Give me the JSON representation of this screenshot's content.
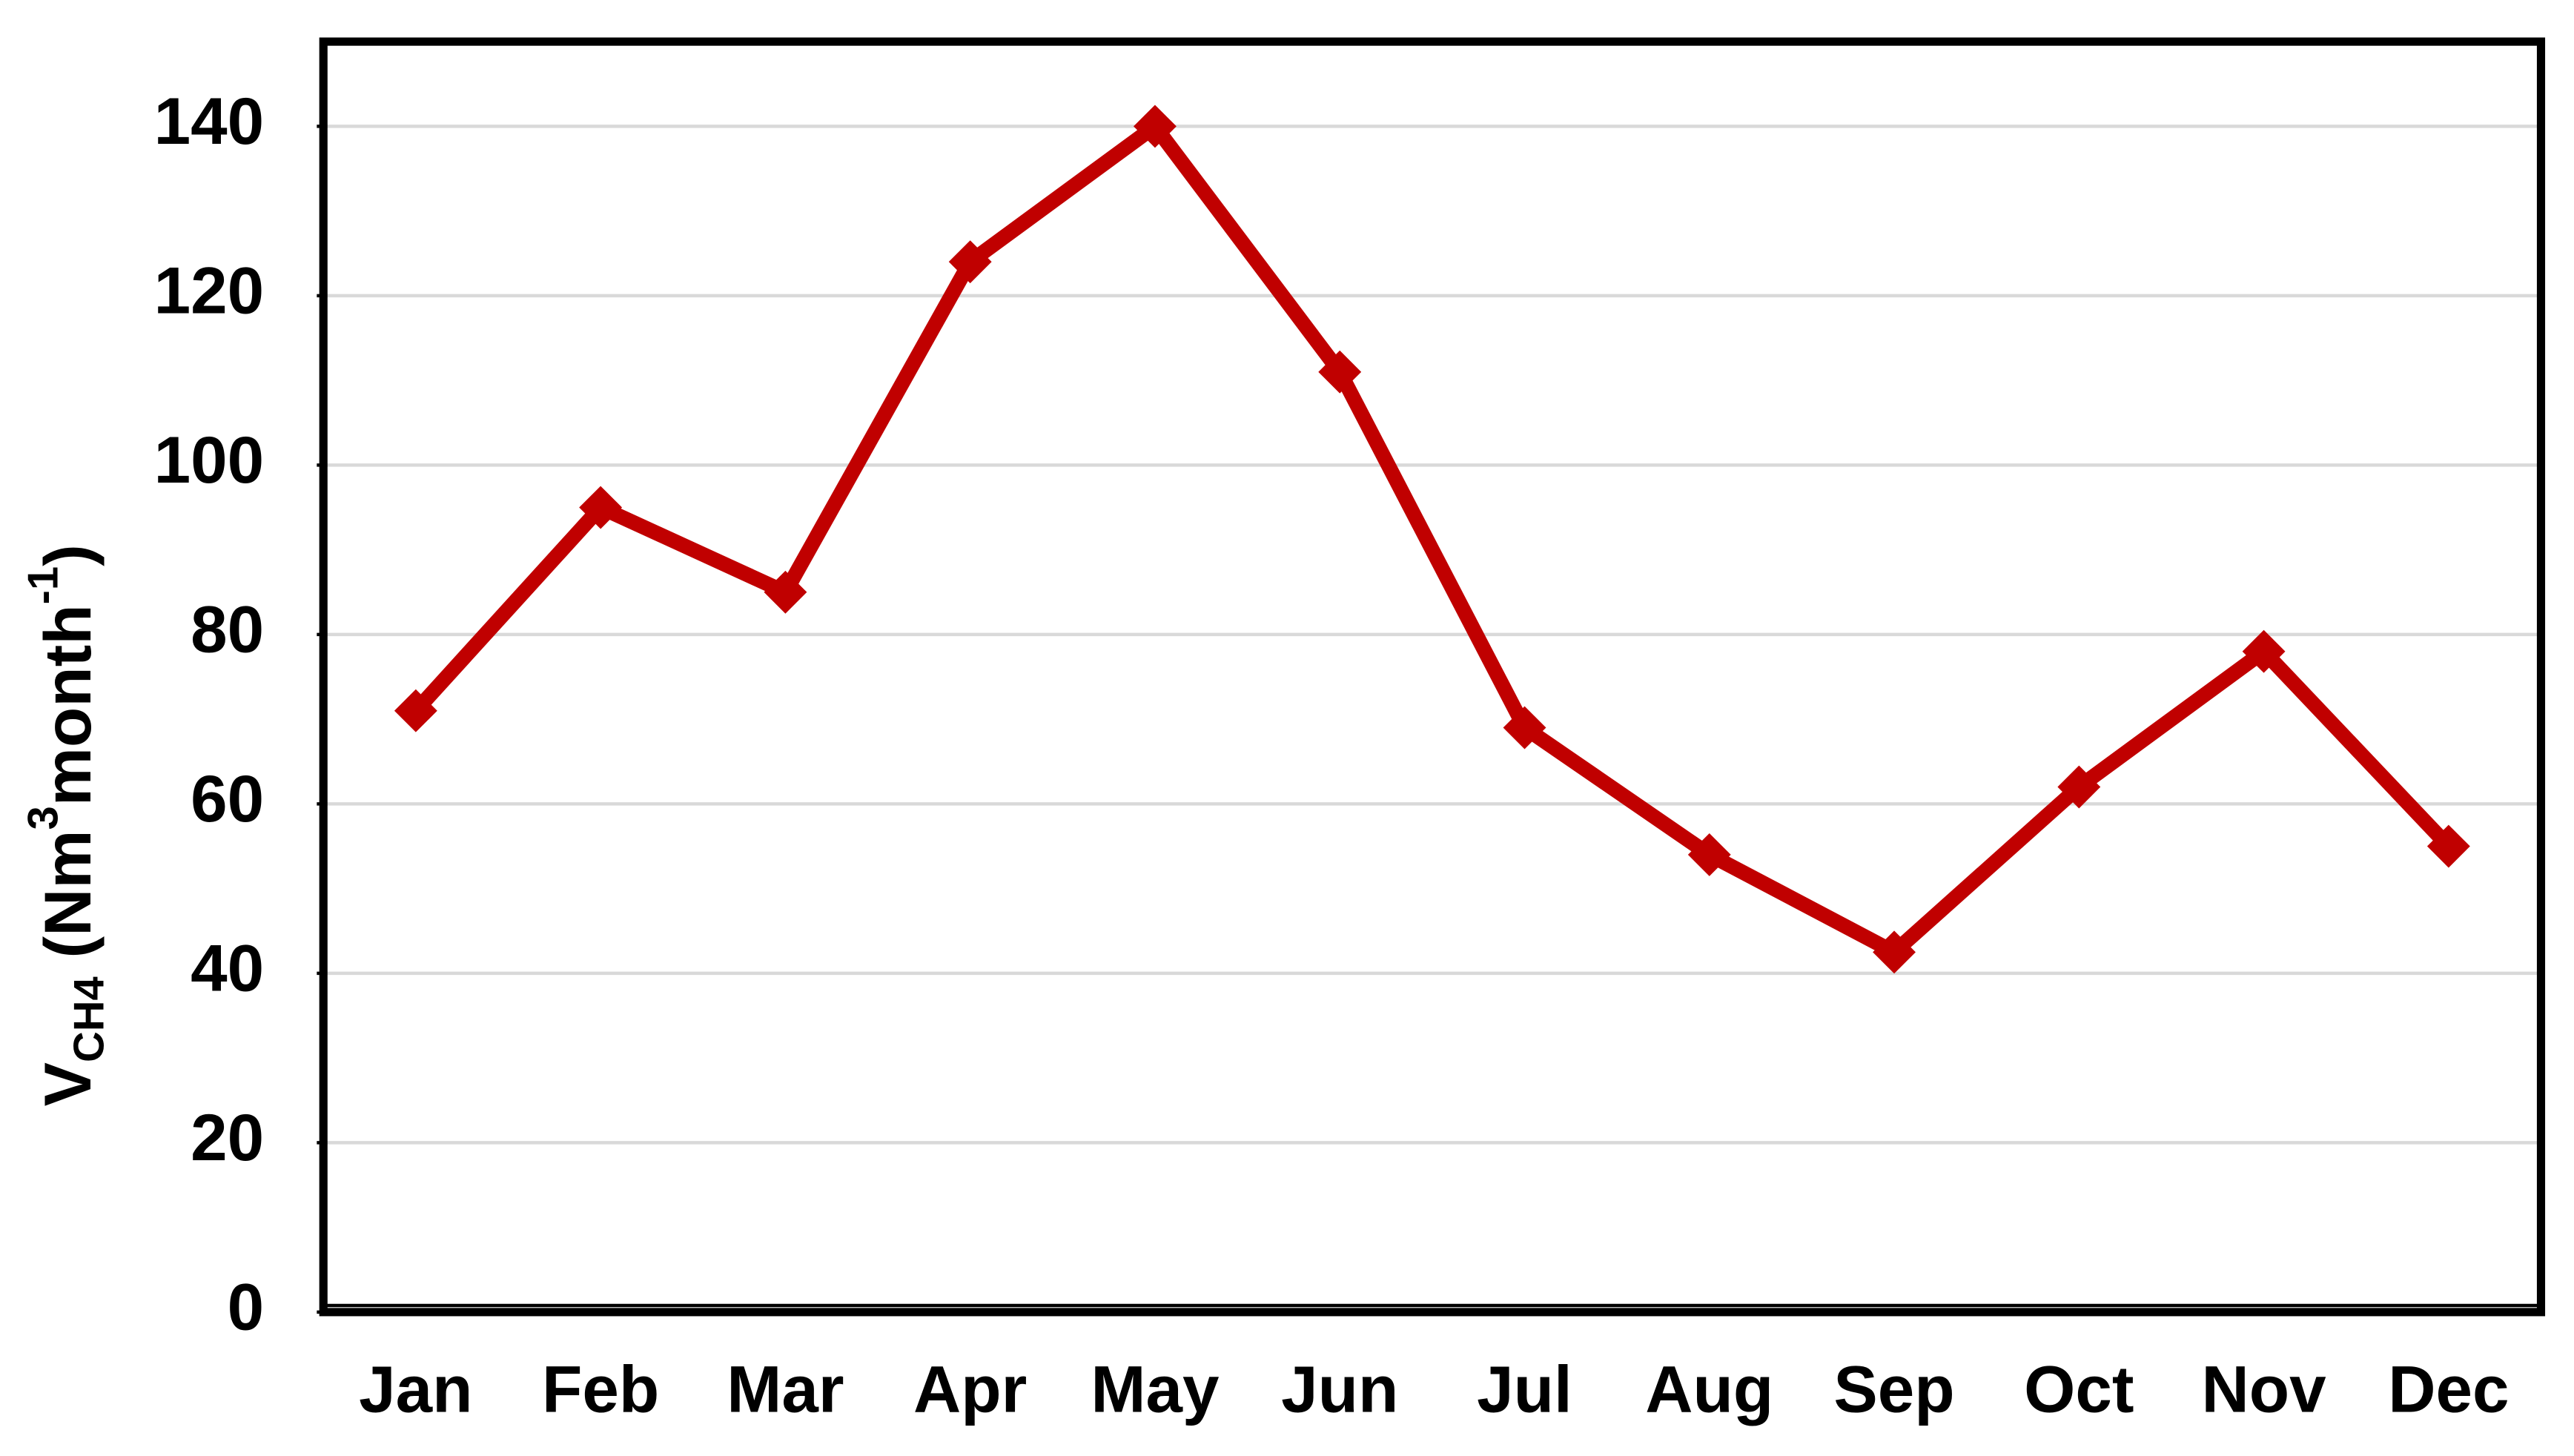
{
  "chart_data": {
    "type": "line",
    "y_label": [
      "V",
      "CH4",
      " (Nm",
      "3",
      "month",
      "-1",
      ")"
    ],
    "categories": [
      "Jan",
      "Feb",
      "Mar",
      "Apr",
      "May",
      "Jun",
      "Jul",
      "Aug",
      "Sep",
      "Oct",
      "Nov",
      "Dec"
    ],
    "series": [
      {
        "color": "#c00000",
        "values": [
          71,
          95,
          85,
          124,
          140,
          111,
          69,
          54,
          42.5,
          62,
          78,
          55
        ]
      }
    ],
    "ylim": [
      0,
      150
    ],
    "yticks": [
      0,
      20,
      40,
      60,
      80,
      100,
      120,
      140
    ],
    "grid": true
  }
}
